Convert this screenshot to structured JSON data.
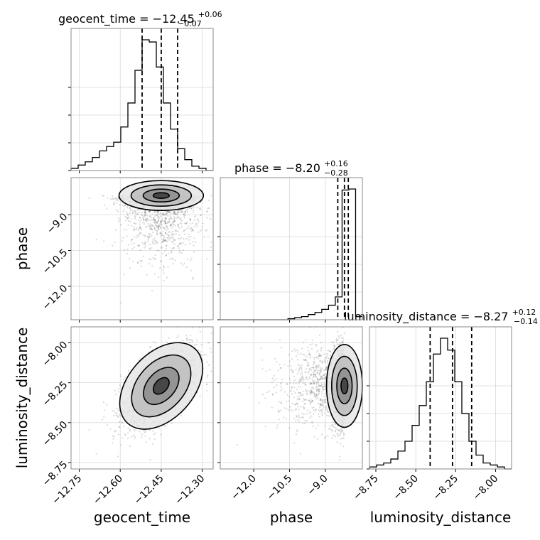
{
  "chart_data": {
    "type": "corner",
    "parameters": [
      "geocent_time",
      "phase",
      "luminosity_distance"
    ],
    "titles": [
      {
        "text": "geocent_time = −12.45",
        "sup": "+0.06",
        "sub": "−0.07"
      },
      {
        "text": "phase = −8.20",
        "sup": "+0.16",
        "sub": "−0.28"
      },
      {
        "text": "luminosity_distance = −8.27",
        "sup": "+0.12",
        "sub": "−0.14"
      }
    ],
    "ranges": {
      "geocent_time": [
        -12.78,
        -12.26
      ],
      "phase": [
        -13.4,
        -7.45
      ],
      "luminosity_distance": [
        -8.79,
        -7.9
      ]
    },
    "ticks": {
      "geocent_time": [
        {
          "v": -12.75,
          "label": "−12.75"
        },
        {
          "v": -12.6,
          "label": "−12.60"
        },
        {
          "v": -12.45,
          "label": "−12.45"
        },
        {
          "v": -12.3,
          "label": "−12.30"
        }
      ],
      "phase": [
        {
          "v": -12.0,
          "label": "−12.0"
        },
        {
          "v": -10.5,
          "label": "−10.5"
        },
        {
          "v": -9.0,
          "label": "−9.0"
        }
      ],
      "luminosity_distance": [
        {
          "v": -8.75,
          "label": "−8.75"
        },
        {
          "v": -8.5,
          "label": "−8.50"
        },
        {
          "v": -8.25,
          "label": "−8.25"
        },
        {
          "v": -8.0,
          "label": "−8.00"
        }
      ]
    },
    "quantiles": {
      "geocent_time": [
        -12.52,
        -12.45,
        -12.39
      ],
      "phase": [
        -8.48,
        -8.2,
        -8.04
      ],
      "luminosity_distance": [
        -8.41,
        -8.27,
        -8.15
      ]
    },
    "histograms": {
      "geocent_time": [
        2,
        5,
        8,
        12,
        18,
        22,
        26,
        40,
        62,
        92,
        120,
        118,
        95,
        62,
        38,
        20,
        10,
        4,
        2,
        0
      ],
      "phase": [
        0,
        0,
        0,
        0,
        0,
        0,
        0,
        0,
        0,
        0,
        1,
        2,
        3,
        5,
        7,
        10,
        14,
        22,
        125,
        126,
        3
      ],
      "luminosity_distance": [
        1,
        2,
        3,
        5,
        9,
        14,
        22,
        32,
        44,
        58,
        66,
        60,
        44,
        28,
        14,
        7,
        3,
        2,
        1,
        0
      ]
    },
    "posterior_samples": {
      "count": 1800,
      "mean": {
        "geocent_time": -12.45,
        "phase": -8.2,
        "luminosity_distance": -8.27
      },
      "sd": {
        "geocent_time": 0.07,
        "phase": 0.9,
        "luminosity_distance": 0.13
      },
      "corr_geocent_time_luminosity_distance": 0.6
    },
    "contour_levels": [
      "0.12",
      "0.39",
      "0.68",
      "0.86"
    ]
  }
}
